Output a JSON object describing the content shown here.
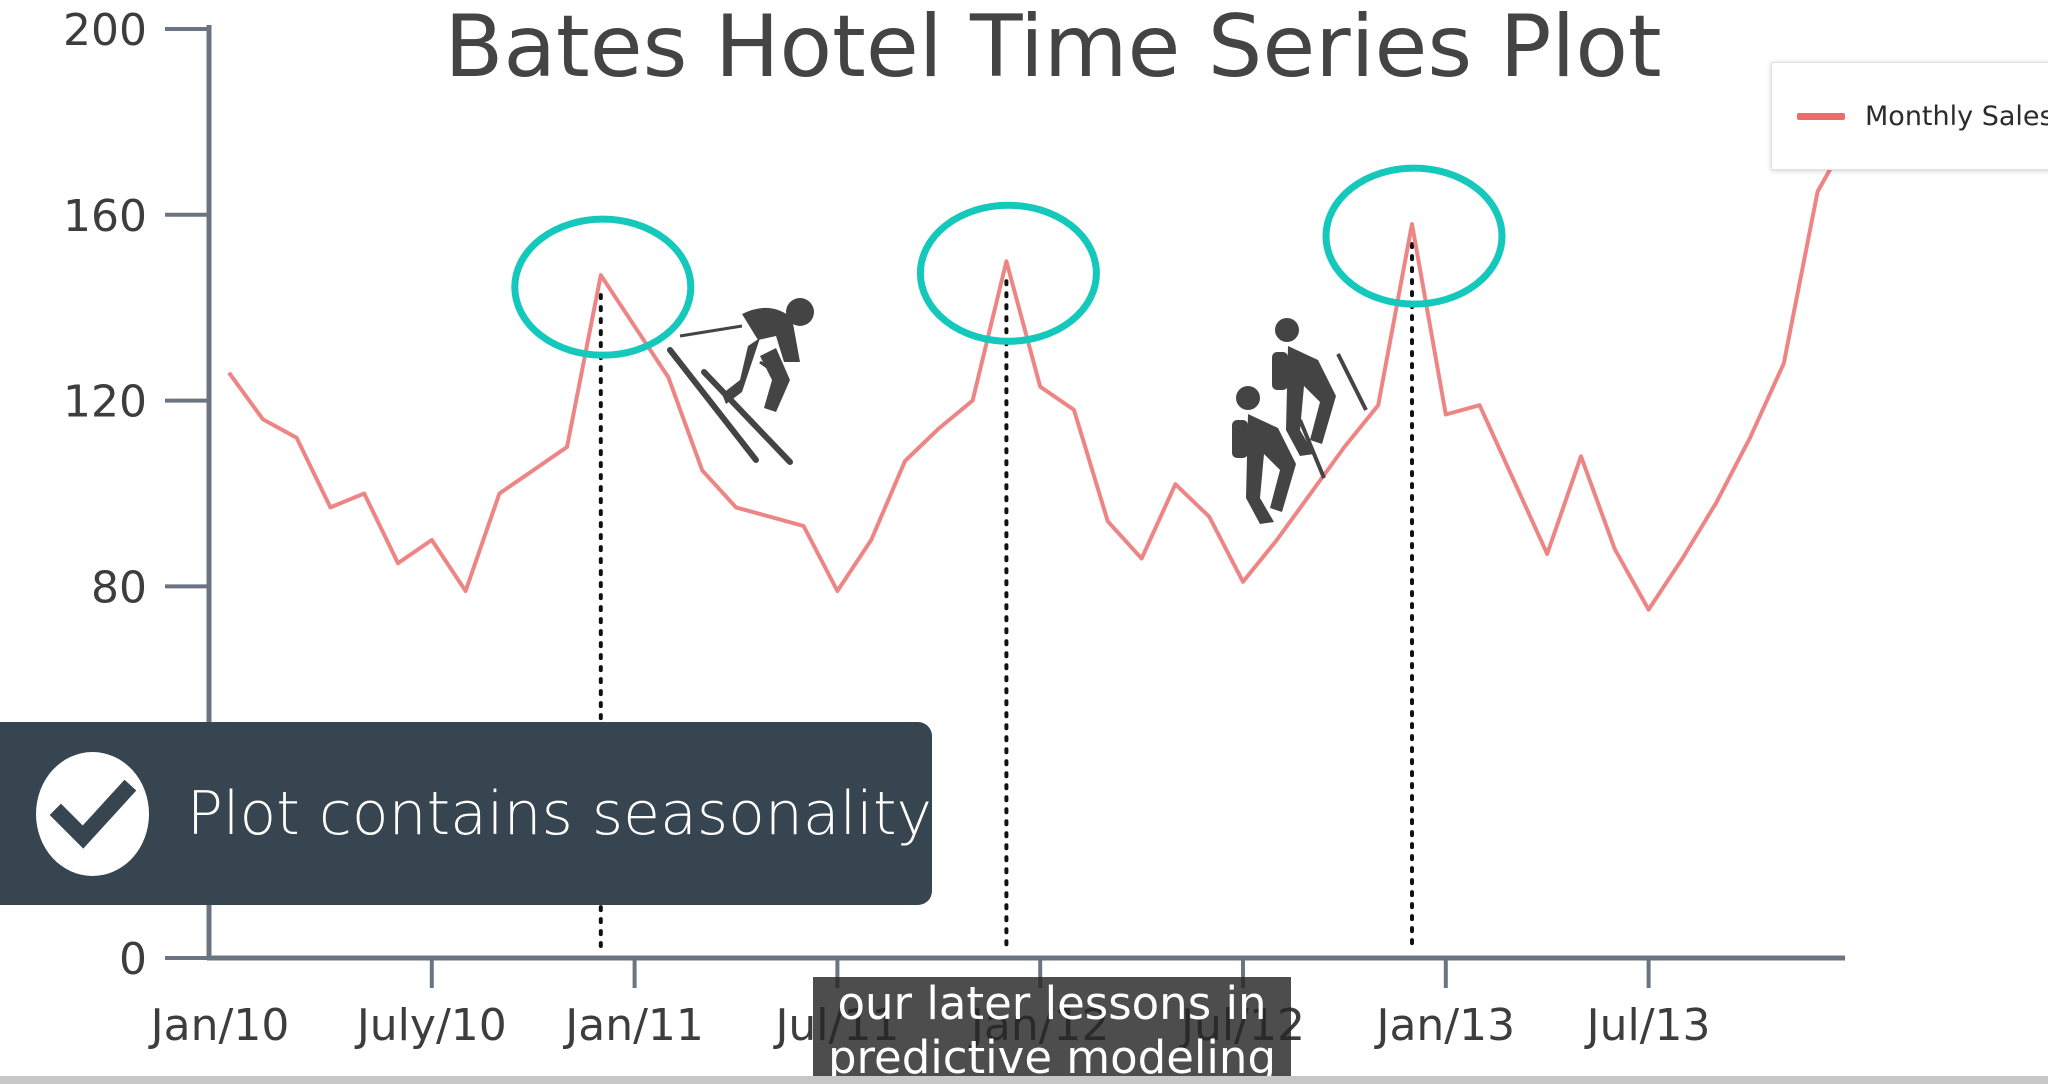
{
  "chart_data": {
    "type": "line",
    "title": "Bates Hotel Time Series Plot",
    "xlabel": "",
    "ylabel": "",
    "ylim": [
      0,
      200
    ],
    "y_ticks": [
      "0",
      "80",
      "120",
      "160",
      "200"
    ],
    "y_tick_values": [
      0,
      80,
      120,
      160,
      200
    ],
    "x_ticks": [
      {
        "label": "Jan/10",
        "month": 0
      },
      {
        "label": "July/10",
        "month": 6
      },
      {
        "label": "Jan/11",
        "month": 12
      },
      {
        "label": "Jul/11",
        "month": 18
      },
      {
        "label": "Jan/12",
        "month": 24
      },
      {
        "label": "Jul/12",
        "month": 30
      },
      {
        "label": "Jan/13",
        "month": 36
      },
      {
        "label": "Jul/13",
        "month": 42
      }
    ],
    "series": [
      {
        "name": "Monthly Sales",
        "color": "#ee8585",
        "x": [
          0,
          1,
          2,
          3,
          4,
          5,
          6,
          7,
          8,
          9,
          10,
          11,
          12,
          13,
          14,
          15,
          16,
          17,
          18,
          19,
          20,
          21,
          22,
          23,
          24,
          25,
          26,
          27,
          28,
          29,
          30,
          31,
          32,
          33,
          34,
          35,
          36,
          37,
          38,
          39,
          40,
          41,
          42,
          43,
          44,
          45,
          46,
          47,
          48
        ],
        "values": [
          126,
          116,
          112,
          97,
          100,
          85,
          90,
          79,
          100,
          105,
          110,
          147,
          136,
          125,
          105,
          97,
          95,
          93,
          79,
          90,
          107,
          114,
          120,
          150,
          123,
          118,
          94,
          86,
          102,
          95,
          81,
          90,
          100,
          110,
          119,
          158,
          117,
          119,
          103,
          87,
          108,
          88,
          75,
          86,
          98,
          112,
          128,
          165,
          178
        ]
      }
    ],
    "legend": {
      "position": "top-right",
      "label": "Monthly Sales",
      "color": "#ee6b6b"
    },
    "annotations": {
      "peak_months": [
        11,
        23,
        35
      ],
      "peak_marker": "ellipse",
      "peak_color": "#14c8bc",
      "vertical_guides": "dotted",
      "icons": [
        "skier-icon",
        "hikers-icon"
      ]
    }
  },
  "callout": {
    "text": "Plot contains seasonality",
    "icon": "checkmark-icon"
  },
  "captions": {
    "line1": "our later lessons in",
    "line2": "predictive modeling"
  }
}
